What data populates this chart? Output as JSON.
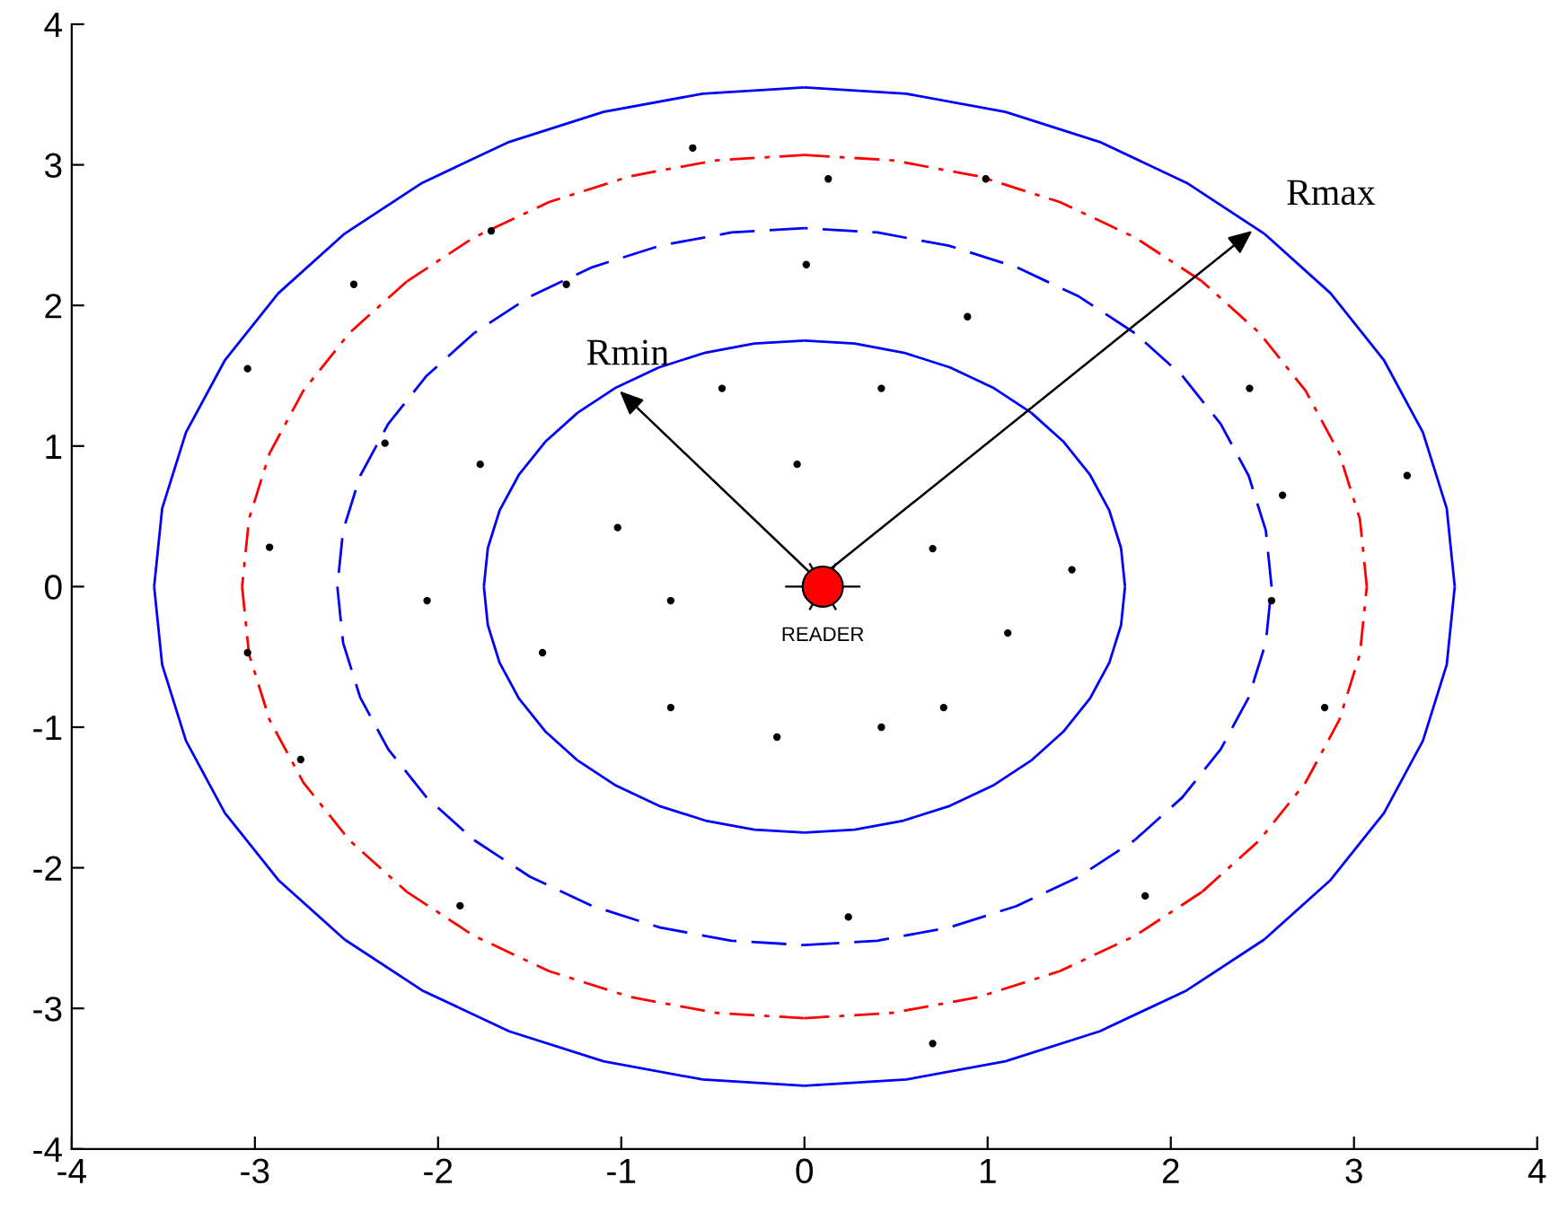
{
  "chart_data": {
    "type": "scatter",
    "xlim": [
      -4,
      4
    ],
    "ylim": [
      -4,
      4
    ],
    "xticks": [
      -4,
      -3,
      -2,
      -1,
      0,
      1,
      2,
      3,
      4
    ],
    "yticks": [
      -4,
      -3,
      -2,
      -1,
      0,
      1,
      2,
      3,
      4
    ],
    "grid": false,
    "series": [
      {
        "color": "#000000",
        "marker": "circle",
        "x": [
          -0.61,
          0.13,
          0.99,
          -1.71,
          -2.46,
          -1.3,
          0.01,
          0.89,
          -3.04,
          -0.45,
          0.42,
          2.43,
          -2.29,
          -1.77,
          -0.04,
          3.29,
          2.61,
          -2.92,
          -1.02,
          0.7,
          1.46,
          -2.06,
          -0.73,
          2.55,
          1.11,
          -1.43,
          -3.04,
          -0.73,
          0.76,
          -0.15,
          0.42,
          2.84,
          -2.75,
          -1.88,
          0.24,
          1.86,
          0.7
        ],
        "values": [
          3.12,
          2.9,
          2.9,
          2.53,
          2.15,
          2.15,
          2.29,
          1.92,
          1.55,
          1.41,
          1.41,
          1.41,
          1.02,
          0.87,
          0.87,
          0.79,
          0.65,
          0.28,
          0.42,
          0.27,
          0.12,
          -0.1,
          -0.1,
          -0.1,
          -0.33,
          -0.47,
          -0.47,
          -0.86,
          -0.86,
          -1.07,
          -1.0,
          -0.86,
          -1.23,
          -2.27,
          -2.35,
          -2.2,
          -3.25
        ]
      },
      {
        "color": "#ff0000",
        "marker": "circle",
        "x": [
          0.1
        ],
        "values": [
          0
        ]
      }
    ],
    "annotations": [
      "READER",
      "Rmin",
      "Rmax"
    ]
  }
}
